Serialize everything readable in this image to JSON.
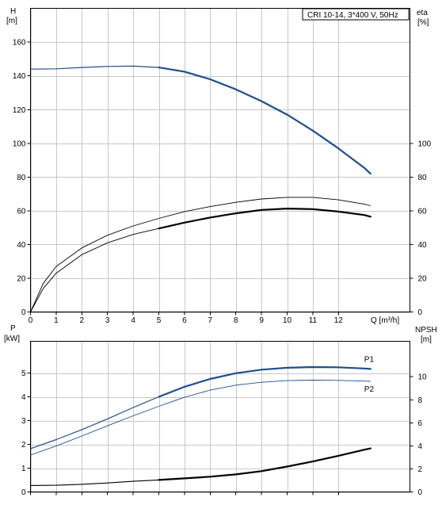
{
  "chart_data": [
    {
      "type": "line",
      "title": "CRI 10-14, 3*400 V, 50Hz",
      "y_left_label": "H",
      "y_left_unit": "[m]",
      "y_right_label": "eta",
      "y_right_unit": "[%]",
      "x_label": "Q [m³/h]",
      "x_ticks": [
        "0",
        "1",
        "2",
        "3",
        "4",
        "5",
        "6",
        "7",
        "8",
        "9",
        "10",
        "11",
        "12"
      ],
      "y_left_ticks": [
        "0",
        "20",
        "40",
        "60",
        "80",
        "100",
        "120",
        "140",
        "160"
      ],
      "y_right_ticks": [
        "0",
        "20",
        "40",
        "60",
        "80",
        "100"
      ],
      "xlim": [
        0,
        14.2
      ],
      "ylim": [
        0,
        178
      ],
      "grid": true,
      "colors": {
        "head": "#1f4e8c",
        "eta": "#000000"
      },
      "series": [
        {
          "key": "head",
          "axis": "left",
          "lw_thin": 1.2,
          "lw_thick": 2.2,
          "thick_from": 5,
          "points": [
            [
              0,
              144
            ],
            [
              1,
              144.2
            ],
            [
              2,
              145
            ],
            [
              3,
              145.6
            ],
            [
              4,
              145.8
            ],
            [
              5,
              145
            ],
            [
              6,
              142.5
            ],
            [
              7,
              138
            ],
            [
              8,
              132
            ],
            [
              9,
              125
            ],
            [
              10,
              117
            ],
            [
              11,
              107.5
            ],
            [
              12,
              97
            ],
            [
              13,
              85.5
            ],
            [
              13.25,
              82
            ]
          ]
        },
        {
          "key": "eta",
          "axis": "right",
          "lw_thin": 0.9,
          "lw_thick": 0.9,
          "thick_from": null,
          "points": [
            [
              0,
              0
            ],
            [
              0.5,
              17
            ],
            [
              1,
              27
            ],
            [
              2,
              38
            ],
            [
              3,
              45.5
            ],
            [
              4,
              51
            ],
            [
              5,
              55.5
            ],
            [
              6,
              59.5
            ],
            [
              7,
              62.5
            ],
            [
              8,
              65
            ],
            [
              9,
              67
            ],
            [
              10,
              68
            ],
            [
              11,
              68
            ],
            [
              12,
              66.5
            ],
            [
              13,
              64
            ],
            [
              13.25,
              63
            ]
          ]
        },
        {
          "key": "eta",
          "axis": "right",
          "lw_thin": 0.9,
          "lw_thick": 2.2,
          "thick_from": 5,
          "points": [
            [
              0,
              0
            ],
            [
              0.5,
              14
            ],
            [
              1,
              23
            ],
            [
              2,
              34
            ],
            [
              3,
              41
            ],
            [
              4,
              46
            ],
            [
              5,
              49.5
            ],
            [
              6,
              53
            ],
            [
              7,
              56
            ],
            [
              8,
              58.5
            ],
            [
              9,
              60.5
            ],
            [
              10,
              61.3
            ],
            [
              11,
              61
            ],
            [
              12,
              59.5
            ],
            [
              13,
              57.5
            ],
            [
              13.25,
              56.5
            ]
          ]
        }
      ]
    },
    {
      "type": "line",
      "y_left_label": "P",
      "y_left_unit": "[kW]",
      "y_right_label": "NPSH",
      "y_right_unit": "[m]",
      "y_left_ticks": [
        "0",
        "1",
        "2",
        "3",
        "4",
        "5"
      ],
      "y_right_ticks": [
        "0",
        "2",
        "4",
        "6",
        "8",
        "10"
      ],
      "xlim": [
        0,
        14.2
      ],
      "ylim": [
        0,
        5.95
      ],
      "grid": true,
      "colors": {
        "power": "#1f4e8c",
        "npsh": "#000000"
      },
      "series": [
        {
          "name": "P1",
          "key": "power",
          "axis": "left",
          "lw_thin": 1.2,
          "lw_thick": 2.2,
          "thick_from": 5,
          "points": [
            [
              0,
              1.82
            ],
            [
              1,
              2.2
            ],
            [
              2,
              2.62
            ],
            [
              3,
              3.07
            ],
            [
              4,
              3.55
            ],
            [
              5,
              4.0
            ],
            [
              6,
              4.42
            ],
            [
              7,
              4.75
            ],
            [
              8,
              4.99
            ],
            [
              9,
              5.14
            ],
            [
              10,
              5.22
            ],
            [
              11,
              5.25
            ],
            [
              12,
              5.24
            ],
            [
              13,
              5.19
            ],
            [
              13.25,
              5.17
            ]
          ]
        },
        {
          "name": "P2",
          "key": "power",
          "axis": "left",
          "lw_thin": 0.9,
          "lw_thick": 0.9,
          "thick_from": null,
          "points": [
            [
              0,
              1.55
            ],
            [
              1,
              1.93
            ],
            [
              2,
              2.35
            ],
            [
              3,
              2.78
            ],
            [
              4,
              3.2
            ],
            [
              5,
              3.6
            ],
            [
              6,
              3.98
            ],
            [
              7,
              4.28
            ],
            [
              8,
              4.49
            ],
            [
              9,
              4.61
            ],
            [
              10,
              4.68
            ],
            [
              11,
              4.7
            ],
            [
              12,
              4.69
            ],
            [
              13,
              4.66
            ],
            [
              13.25,
              4.65
            ]
          ]
        },
        {
          "key": "npsh",
          "axis": "right",
          "lw_thin": 1.1,
          "lw_thick": 2.2,
          "thick_from": 5,
          "points": [
            [
              0,
              0.56
            ],
            [
              1,
              0.58
            ],
            [
              2,
              0.66
            ],
            [
              3,
              0.78
            ],
            [
              4,
              0.92
            ],
            [
              5,
              1.04
            ],
            [
              6,
              1.18
            ],
            [
              7,
              1.32
            ],
            [
              8,
              1.52
            ],
            [
              9,
              1.8
            ],
            [
              10,
              2.2
            ],
            [
              11,
              2.64
            ],
            [
              12,
              3.14
            ],
            [
              13,
              3.66
            ],
            [
              13.25,
              3.78
            ]
          ]
        }
      ]
    }
  ]
}
